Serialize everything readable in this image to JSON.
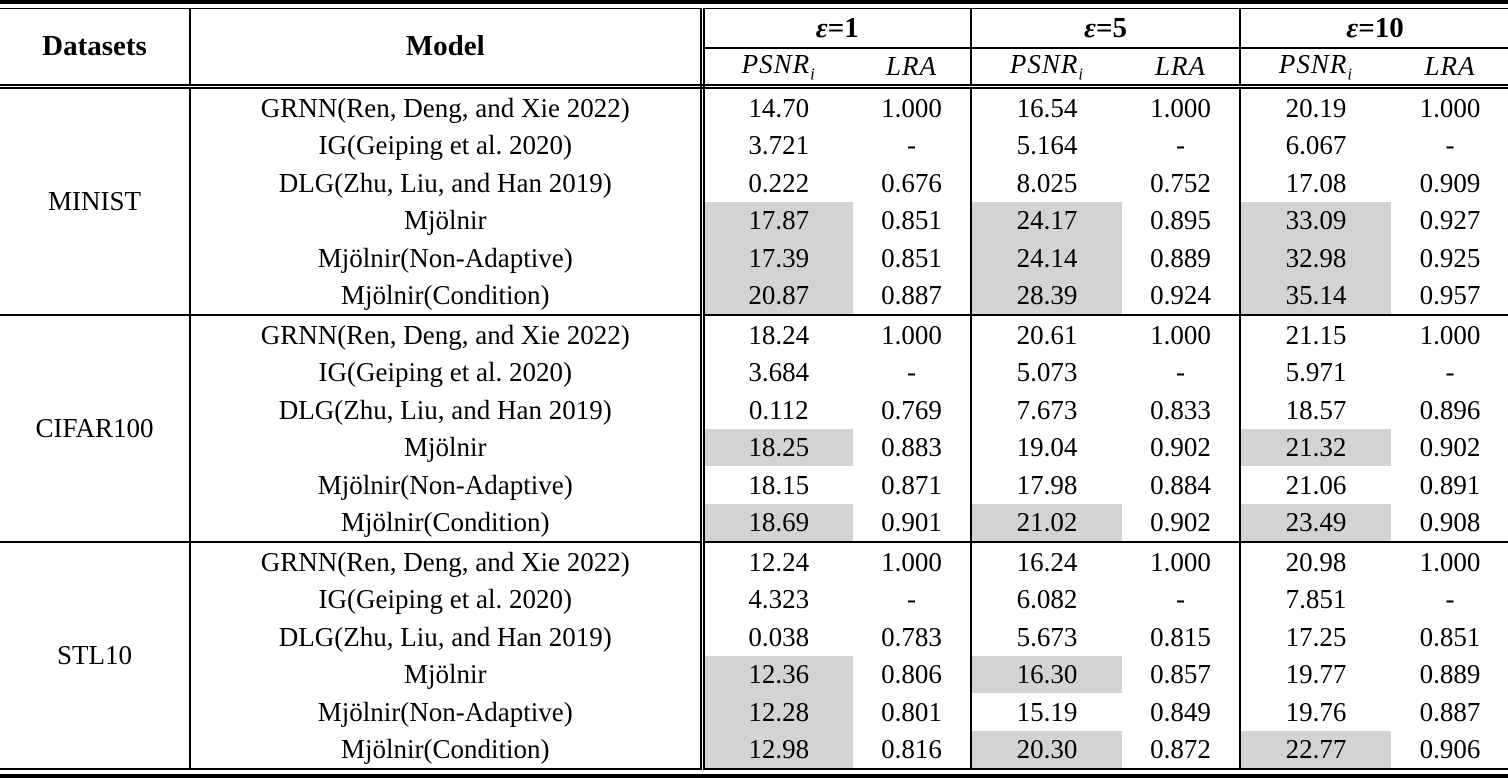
{
  "table": {
    "header": {
      "datasets": "Datasets",
      "model": "Model",
      "groups": [
        {
          "sym": "ε",
          "val": "=1"
        },
        {
          "sym": "ε",
          "val": "=5"
        },
        {
          "sym": "ε",
          "val": "=10"
        }
      ],
      "psnr": {
        "base": "PSNR",
        "sub": "i"
      },
      "lra": "LRA"
    },
    "colors": {
      "highlight": "#d3d3d3",
      "border": "#000000",
      "text": "#000000",
      "background": "#ffffff"
    },
    "blocks": [
      {
        "dataset": "MINIST",
        "rows": [
          {
            "model": "GRNN(Ren, Deng, and Xie 2022)",
            "cells": [
              {
                "psnr": "14.70",
                "lra": "1.000",
                "hl": false
              },
              {
                "psnr": "16.54",
                "lra": "1.000",
                "hl": false
              },
              {
                "psnr": "20.19",
                "lra": "1.000",
                "hl": false
              }
            ]
          },
          {
            "model": "IG(Geiping et al. 2020)",
            "cells": [
              {
                "psnr": "3.721",
                "lra": "-",
                "hl": false
              },
              {
                "psnr": "5.164",
                "lra": "-",
                "hl": false
              },
              {
                "psnr": "6.067",
                "lra": "-",
                "hl": false
              }
            ]
          },
          {
            "model": "DLG(Zhu, Liu, and Han 2019)",
            "cells": [
              {
                "psnr": "0.222",
                "lra": "0.676",
                "hl": false
              },
              {
                "psnr": "8.025",
                "lra": "0.752",
                "hl": false
              },
              {
                "psnr": "17.08",
                "lra": "0.909",
                "hl": false
              }
            ]
          },
          {
            "model": "Mjölnir",
            "cells": [
              {
                "psnr": "17.87",
                "lra": "0.851",
                "hl": true
              },
              {
                "psnr": "24.17",
                "lra": "0.895",
                "hl": true
              },
              {
                "psnr": "33.09",
                "lra": "0.927",
                "hl": true
              }
            ]
          },
          {
            "model": "Mjölnir(Non-Adaptive)",
            "cells": [
              {
                "psnr": "17.39",
                "lra": "0.851",
                "hl": true
              },
              {
                "psnr": "24.14",
                "lra": "0.889",
                "hl": true
              },
              {
                "psnr": "32.98",
                "lra": "0.925",
                "hl": true
              }
            ]
          },
          {
            "model": "Mjölnir(Condition)",
            "cells": [
              {
                "psnr": "20.87",
                "lra": "0.887",
                "hl": true
              },
              {
                "psnr": "28.39",
                "lra": "0.924",
                "hl": true
              },
              {
                "psnr": "35.14",
                "lra": "0.957",
                "hl": true
              }
            ]
          }
        ]
      },
      {
        "dataset": "CIFAR100",
        "rows": [
          {
            "model": "GRNN(Ren, Deng, and Xie 2022)",
            "cells": [
              {
                "psnr": "18.24",
                "lra": "1.000",
                "hl": false
              },
              {
                "psnr": "20.61",
                "lra": "1.000",
                "hl": false
              },
              {
                "psnr": "21.15",
                "lra": "1.000",
                "hl": false
              }
            ]
          },
          {
            "model": "IG(Geiping et al. 2020)",
            "cells": [
              {
                "psnr": "3.684",
                "lra": "-",
                "hl": false
              },
              {
                "psnr": "5.073",
                "lra": "-",
                "hl": false
              },
              {
                "psnr": "5.971",
                "lra": "-",
                "hl": false
              }
            ]
          },
          {
            "model": "DLG(Zhu, Liu, and Han 2019)",
            "cells": [
              {
                "psnr": "0.112",
                "lra": "0.769",
                "hl": false
              },
              {
                "psnr": "7.673",
                "lra": "0.833",
                "hl": false
              },
              {
                "psnr": "18.57",
                "lra": "0.896",
                "hl": false
              }
            ]
          },
          {
            "model": "Mjölnir",
            "cells": [
              {
                "psnr": "18.25",
                "lra": "0.883",
                "hl": true
              },
              {
                "psnr": "19.04",
                "lra": "0.902",
                "hl": false
              },
              {
                "psnr": "21.32",
                "lra": "0.902",
                "hl": true
              }
            ]
          },
          {
            "model": "Mjölnir(Non-Adaptive)",
            "cells": [
              {
                "psnr": "18.15",
                "lra": "0.871",
                "hl": false
              },
              {
                "psnr": "17.98",
                "lra": "0.884",
                "hl": false
              },
              {
                "psnr": "21.06",
                "lra": "0.891",
                "hl": false
              }
            ]
          },
          {
            "model": "Mjölnir(Condition)",
            "cells": [
              {
                "psnr": "18.69",
                "lra": "0.901",
                "hl": true
              },
              {
                "psnr": "21.02",
                "lra": "0.902",
                "hl": true
              },
              {
                "psnr": "23.49",
                "lra": "0.908",
                "hl": true
              }
            ]
          }
        ]
      },
      {
        "dataset": "STL10",
        "rows": [
          {
            "model": "GRNN(Ren, Deng, and Xie 2022)",
            "cells": [
              {
                "psnr": "12.24",
                "lra": "1.000",
                "hl": false
              },
              {
                "psnr": "16.24",
                "lra": "1.000",
                "hl": false
              },
              {
                "psnr": "20.98",
                "lra": "1.000",
                "hl": false
              }
            ]
          },
          {
            "model": "IG(Geiping et al. 2020)",
            "cells": [
              {
                "psnr": "4.323",
                "lra": "-",
                "hl": false
              },
              {
                "psnr": "6.082",
                "lra": "-",
                "hl": false
              },
              {
                "psnr": "7.851",
                "lra": "-",
                "hl": false
              }
            ]
          },
          {
            "model": "DLG(Zhu, Liu, and Han 2019)",
            "cells": [
              {
                "psnr": "0.038",
                "lra": "0.783",
                "hl": false
              },
              {
                "psnr": "5.673",
                "lra": "0.815",
                "hl": false
              },
              {
                "psnr": "17.25",
                "lra": "0.851",
                "hl": false
              }
            ]
          },
          {
            "model": "Mjölnir",
            "cells": [
              {
                "psnr": "12.36",
                "lra": "0.806",
                "hl": true
              },
              {
                "psnr": "16.30",
                "lra": "0.857",
                "hl": true
              },
              {
                "psnr": "19.77",
                "lra": "0.889",
                "hl": false
              }
            ]
          },
          {
            "model": "Mjölnir(Non-Adaptive)",
            "cells": [
              {
                "psnr": "12.28",
                "lra": "0.801",
                "hl": true
              },
              {
                "psnr": "15.19",
                "lra": "0.849",
                "hl": false
              },
              {
                "psnr": "19.76",
                "lra": "0.887",
                "hl": false
              }
            ]
          },
          {
            "model": "Mjölnir(Condition)",
            "cells": [
              {
                "psnr": "12.98",
                "lra": "0.816",
                "hl": true
              },
              {
                "psnr": "20.30",
                "lra": "0.872",
                "hl": true
              },
              {
                "psnr": "22.77",
                "lra": "0.906",
                "hl": true
              }
            ]
          }
        ]
      }
    ]
  }
}
